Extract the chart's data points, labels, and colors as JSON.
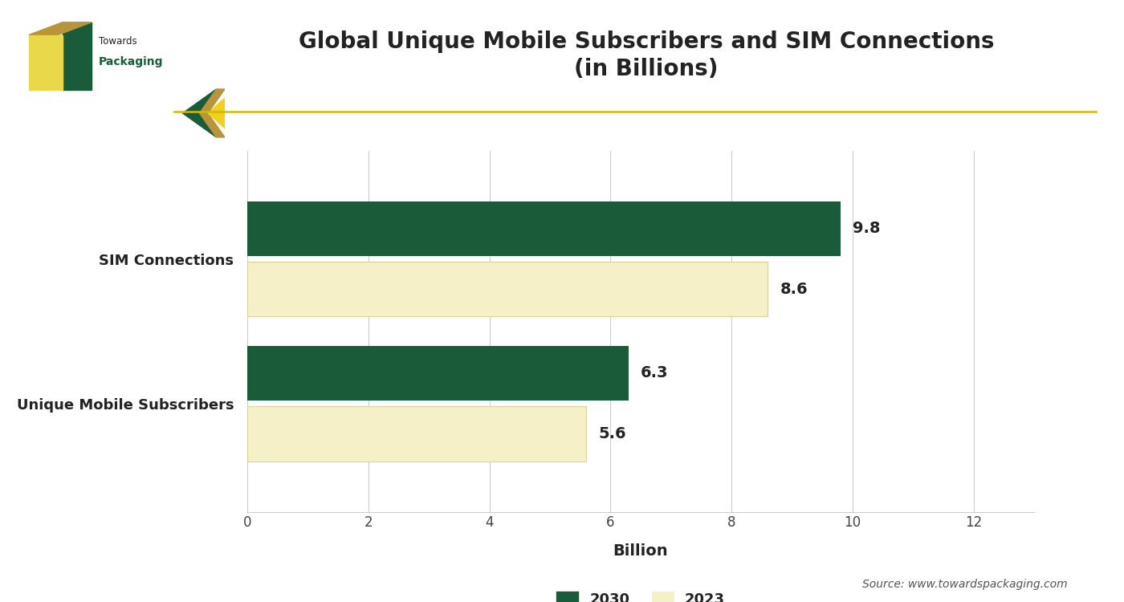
{
  "title": "Global Unique Mobile Subscribers and SIM Connections\n(in Billions)",
  "categories": [
    "Unique Mobile Subscribers",
    "SIM Connections"
  ],
  "values_2030": [
    6.3,
    9.8
  ],
  "values_2023": [
    5.6,
    8.6
  ],
  "color_2030": "#1a5c3a",
  "color_2023": "#f5f0c8",
  "color_2023_border": "#d8d0a0",
  "xlabel": "Billion",
  "xlim": [
    0,
    13
  ],
  "xticks": [
    0,
    2,
    4,
    6,
    8,
    10,
    12
  ],
  "bar_height": 0.38,
  "bar_gap": 0.04,
  "annotation_fontsize": 14,
  "label_fontsize": 13,
  "title_fontsize": 20,
  "xlabel_fontsize": 14,
  "legend_fontsize": 13,
  "source_text": "Source: www.towardspackaging.com",
  "accent_line_color": "#d4b800",
  "background_color": "#ffffff",
  "logo_green": "#1a5c3a",
  "logo_gold": "#b8943a",
  "logo_yellow": "#f0e040"
}
